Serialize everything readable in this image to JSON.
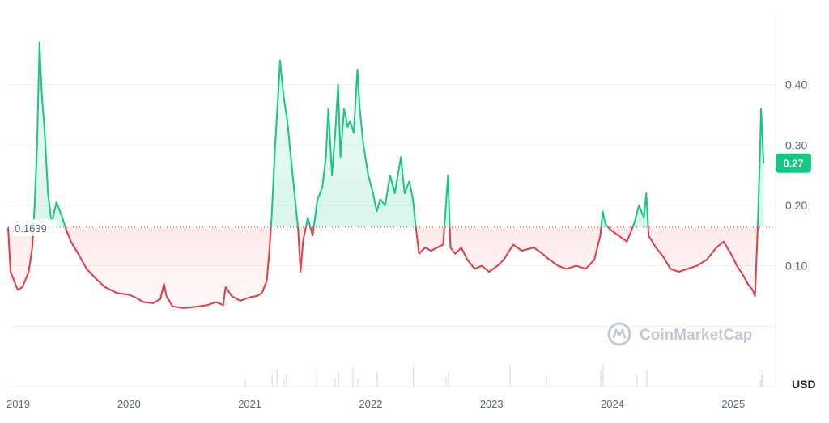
{
  "chart_data": {
    "type": "area",
    "x_ticks": [
      "2019",
      "2020",
      "2021",
      "2022",
      "2023",
      "2024",
      "2025"
    ],
    "y_ticks": [
      "0.40",
      "0.30",
      "0.20",
      "0.10"
    ],
    "ylim": [
      -0.1,
      0.52
    ],
    "xlim": [
      2019.0,
      2025.35
    ],
    "baseline": {
      "label": "0.1639",
      "value": 0.1639
    },
    "last_price": {
      "label": "0.27",
      "value": 0.27
    },
    "currency": "USD",
    "grid": true,
    "series": [
      {
        "values": [
          [
            2019.0,
            0.163
          ],
          [
            2019.02,
            0.09
          ],
          [
            2019.05,
            0.075
          ],
          [
            2019.08,
            0.06
          ],
          [
            2019.12,
            0.065
          ],
          [
            2019.17,
            0.09
          ],
          [
            2019.2,
            0.13
          ],
          [
            2019.22,
            0.2
          ],
          [
            2019.24,
            0.3
          ],
          [
            2019.26,
            0.47
          ],
          [
            2019.28,
            0.38
          ],
          [
            2019.3,
            0.33
          ],
          [
            2019.33,
            0.22
          ],
          [
            2019.36,
            0.17
          ],
          [
            2019.4,
            0.205
          ],
          [
            2019.44,
            0.185
          ],
          [
            2019.48,
            0.16
          ],
          [
            2019.52,
            0.14
          ],
          [
            2019.58,
            0.12
          ],
          [
            2019.65,
            0.095
          ],
          [
            2019.72,
            0.08
          ],
          [
            2019.8,
            0.065
          ],
          [
            2019.9,
            0.055
          ],
          [
            2020.0,
            0.052
          ],
          [
            2020.05,
            0.048
          ],
          [
            2020.12,
            0.04
          ],
          [
            2020.2,
            0.038
          ],
          [
            2020.26,
            0.045
          ],
          [
            2020.29,
            0.07
          ],
          [
            2020.31,
            0.05
          ],
          [
            2020.36,
            0.033
          ],
          [
            2020.45,
            0.03
          ],
          [
            2020.55,
            0.032
          ],
          [
            2020.65,
            0.035
          ],
          [
            2020.72,
            0.04
          ],
          [
            2020.78,
            0.035
          ],
          [
            2020.8,
            0.065
          ],
          [
            2020.85,
            0.05
          ],
          [
            2020.92,
            0.042
          ],
          [
            2021.0,
            0.048
          ],
          [
            2021.06,
            0.05
          ],
          [
            2021.1,
            0.055
          ],
          [
            2021.14,
            0.075
          ],
          [
            2021.16,
            0.12
          ],
          [
            2021.18,
            0.18
          ],
          [
            2021.21,
            0.3
          ],
          [
            2021.24,
            0.4
          ],
          [
            2021.25,
            0.44
          ],
          [
            2021.28,
            0.38
          ],
          [
            2021.31,
            0.34
          ],
          [
            2021.34,
            0.28
          ],
          [
            2021.37,
            0.22
          ],
          [
            2021.4,
            0.16
          ],
          [
            2021.42,
            0.09
          ],
          [
            2021.44,
            0.14
          ],
          [
            2021.48,
            0.18
          ],
          [
            2021.52,
            0.15
          ],
          [
            2021.56,
            0.21
          ],
          [
            2021.6,
            0.23
          ],
          [
            2021.63,
            0.28
          ],
          [
            2021.65,
            0.36
          ],
          [
            2021.68,
            0.25
          ],
          [
            2021.71,
            0.33
          ],
          [
            2021.73,
            0.4
          ],
          [
            2021.75,
            0.28
          ],
          [
            2021.78,
            0.36
          ],
          [
            2021.81,
            0.33
          ],
          [
            2021.83,
            0.34
          ],
          [
            2021.86,
            0.32
          ],
          [
            2021.89,
            0.425
          ],
          [
            2021.91,
            0.36
          ],
          [
            2021.94,
            0.3
          ],
          [
            2021.98,
            0.25
          ],
          [
            2022.02,
            0.22
          ],
          [
            2022.05,
            0.19
          ],
          [
            2022.08,
            0.21
          ],
          [
            2022.12,
            0.2
          ],
          [
            2022.16,
            0.25
          ],
          [
            2022.2,
            0.22
          ],
          [
            2022.25,
            0.28
          ],
          [
            2022.28,
            0.22
          ],
          [
            2022.32,
            0.24
          ],
          [
            2022.35,
            0.21
          ],
          [
            2022.37,
            0.17
          ],
          [
            2022.4,
            0.12
          ],
          [
            2022.45,
            0.13
          ],
          [
            2022.5,
            0.125
          ],
          [
            2022.55,
            0.13
          ],
          [
            2022.6,
            0.135
          ],
          [
            2022.64,
            0.25
          ],
          [
            2022.66,
            0.13
          ],
          [
            2022.7,
            0.12
          ],
          [
            2022.75,
            0.13
          ],
          [
            2022.8,
            0.11
          ],
          [
            2022.86,
            0.095
          ],
          [
            2022.92,
            0.1
          ],
          [
            2022.98,
            0.09
          ],
          [
            2023.05,
            0.1
          ],
          [
            2023.1,
            0.11
          ],
          [
            2023.18,
            0.135
          ],
          [
            2023.25,
            0.125
          ],
          [
            2023.35,
            0.13
          ],
          [
            2023.42,
            0.12
          ],
          [
            2023.48,
            0.11
          ],
          [
            2023.55,
            0.1
          ],
          [
            2023.62,
            0.095
          ],
          [
            2023.7,
            0.1
          ],
          [
            2023.78,
            0.095
          ],
          [
            2023.85,
            0.11
          ],
          [
            2023.9,
            0.15
          ],
          [
            2023.92,
            0.19
          ],
          [
            2023.94,
            0.17
          ],
          [
            2023.98,
            0.16
          ],
          [
            2024.05,
            0.15
          ],
          [
            2024.12,
            0.14
          ],
          [
            2024.18,
            0.17
          ],
          [
            2024.22,
            0.2
          ],
          [
            2024.26,
            0.18
          ],
          [
            2024.28,
            0.22
          ],
          [
            2024.3,
            0.15
          ],
          [
            2024.36,
            0.13
          ],
          [
            2024.42,
            0.115
          ],
          [
            2024.48,
            0.095
          ],
          [
            2024.55,
            0.09
          ],
          [
            2024.62,
            0.095
          ],
          [
            2024.7,
            0.1
          ],
          [
            2024.78,
            0.11
          ],
          [
            2024.86,
            0.13
          ],
          [
            2024.92,
            0.14
          ],
          [
            2024.98,
            0.12
          ],
          [
            2025.03,
            0.1
          ],
          [
            2025.08,
            0.085
          ],
          [
            2025.12,
            0.07
          ],
          [
            2025.16,
            0.06
          ],
          [
            2025.18,
            0.05
          ],
          [
            2025.2,
            0.15
          ],
          [
            2025.22,
            0.28
          ],
          [
            2025.23,
            0.36
          ],
          [
            2025.25,
            0.27
          ]
        ]
      }
    ],
    "volume_x": [
      2020.96,
      2021.18,
      2021.22,
      2021.28,
      2021.3,
      2021.55,
      2021.7,
      2021.73,
      2021.85,
      2021.89,
      2022.05,
      2022.35,
      2022.62,
      2022.64,
      2023.15,
      2023.45,
      2023.9,
      2023.92,
      2024.2,
      2024.28,
      2025.22,
      2025.23,
      2025.24
    ]
  },
  "watermark": {
    "text": "CoinMarketCap"
  },
  "colors": {
    "up": "#16c784",
    "down": "#ea3943",
    "up_fill": "#16c784",
    "down_fill": "#ea3943",
    "grid": "#eff2f5",
    "baseline": "#ea3943"
  }
}
